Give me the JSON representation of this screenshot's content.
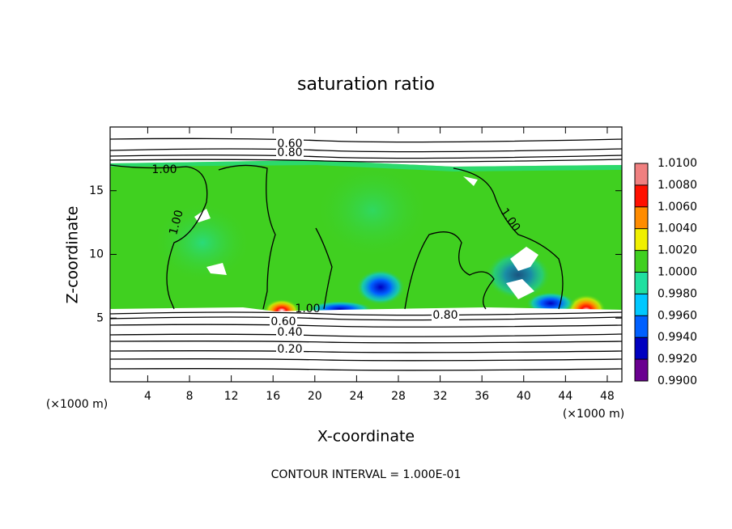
{
  "chart_data": {
    "type": "contour",
    "title": "saturation ratio",
    "x_label": "X-coordinate",
    "y_label": "Z-coordinate",
    "x_unit": "(×1000 m)",
    "footer": "CONTOUR INTERVAL = 1.000E-01",
    "xlim": [
      0.4,
      49.4
    ],
    "ylim": [
      0,
      20
    ],
    "xticks": [
      4,
      8,
      12,
      16,
      20,
      24,
      28,
      32,
      36,
      40,
      44,
      48
    ],
    "yticks": [
      5,
      10,
      15
    ],
    "contours": [
      {
        "value": 0.2,
        "label": "0.20"
      },
      {
        "value": 0.4,
        "label": "0.40"
      },
      {
        "value": 0.6,
        "label": "0.60"
      },
      {
        "value": 0.8,
        "label": "0.80"
      },
      {
        "value": 1.0,
        "label": "1.00"
      }
    ],
    "colorbar": {
      "ticks": [
        {
          "value": 0.99,
          "label": "0.9900"
        },
        {
          "value": 0.992,
          "label": "0.9920"
        },
        {
          "value": 0.994,
          "label": "0.9940"
        },
        {
          "value": 0.996,
          "label": "0.9960"
        },
        {
          "value": 0.998,
          "label": "0.9980"
        },
        {
          "value": 1.0,
          "label": "1.0000"
        },
        {
          "value": 1.002,
          "label": "1.0020"
        },
        {
          "value": 1.004,
          "label": "1.0040"
        },
        {
          "value": 1.006,
          "label": "1.0060"
        },
        {
          "value": 1.008,
          "label": "1.0080"
        },
        {
          "value": 1.01,
          "label": "1.0100"
        }
      ],
      "colors": [
        "#6a0090",
        "#0000c0",
        "#0060ff",
        "#00c8ff",
        "#20e0a0",
        "#40d020",
        "#f0f000",
        "#ff8c00",
        "#ff1000",
        "#f08080"
      ]
    }
  }
}
